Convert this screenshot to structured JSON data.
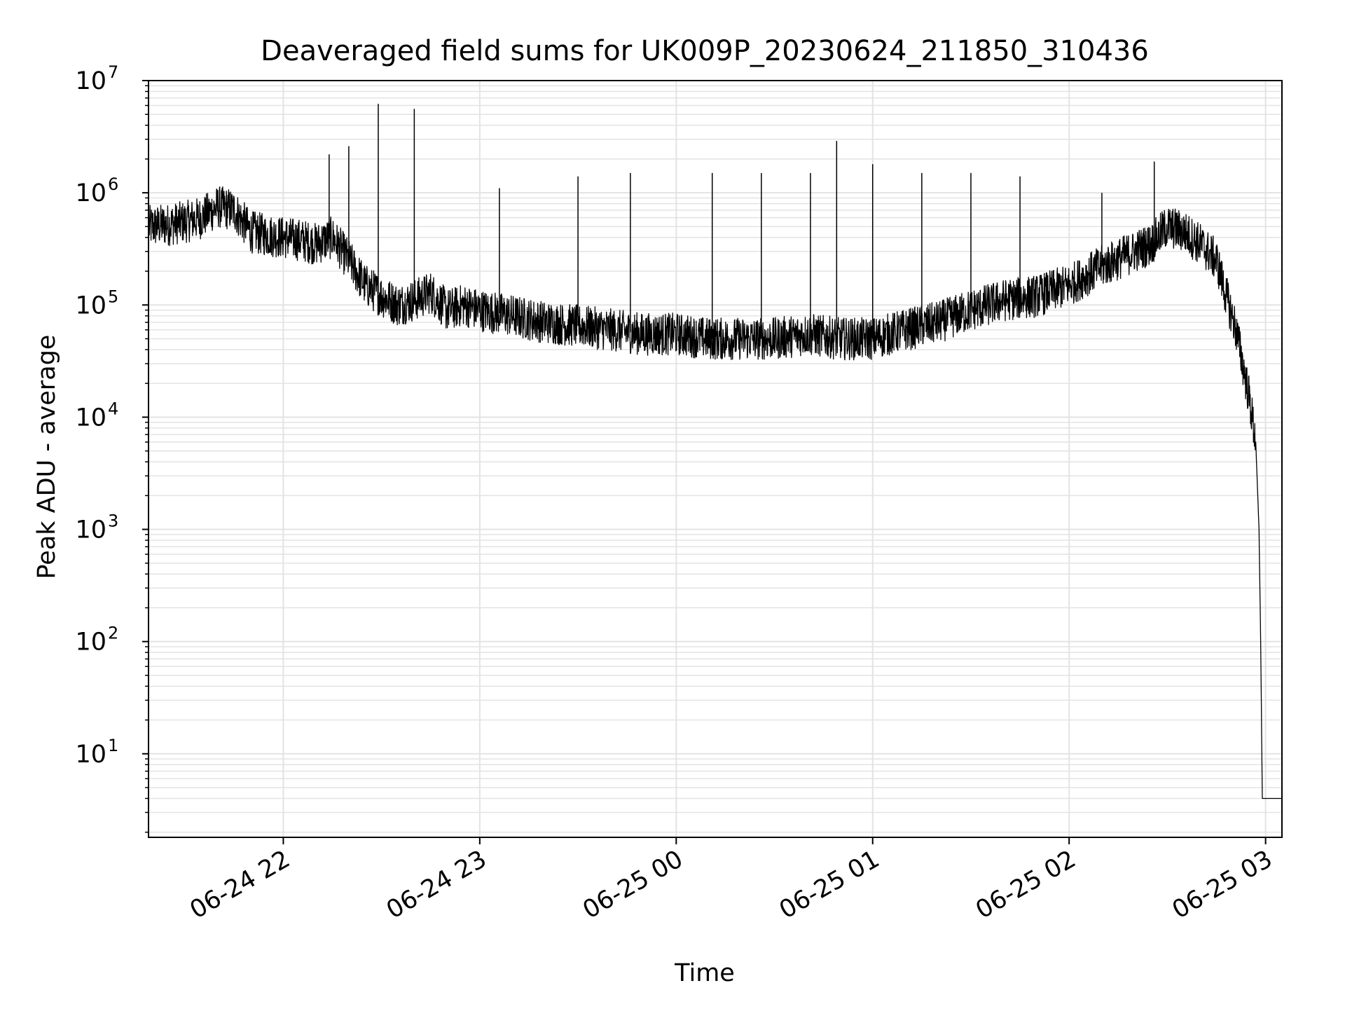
{
  "chart_data": {
    "type": "line",
    "title": "Deaveraged field sums for UK009P_20230624_211850_310436",
    "xlabel": "Time",
    "ylabel": "Peak ADU - average",
    "yscale": "log",
    "ylim": [
      1.8,
      10000000
    ],
    "xlim": [
      "2023-06-24 21:18:50",
      "2023-06-25 03:05:00"
    ],
    "grid": true,
    "x_ticks": [
      {
        "value": "2023-06-24 22:00",
        "label": "06-24 22"
      },
      {
        "value": "2023-06-24 23:00",
        "label": "06-24 23"
      },
      {
        "value": "2023-06-25 00:00",
        "label": "06-25 00"
      },
      {
        "value": "2023-06-25 01:00",
        "label": "06-25 01"
      },
      {
        "value": "2023-06-25 02:00",
        "label": "06-25 02"
      },
      {
        "value": "2023-06-25 03:00",
        "label": "06-25 03"
      }
    ],
    "y_ticks": [
      {
        "value": 10,
        "base": "10",
        "exp": "1"
      },
      {
        "value": 100,
        "base": "10",
        "exp": "2"
      },
      {
        "value": 1000,
        "base": "10",
        "exp": "3"
      },
      {
        "value": 10000,
        "base": "10",
        "exp": "4"
      },
      {
        "value": 100000,
        "base": "10",
        "exp": "5"
      },
      {
        "value": 1000000,
        "base": "10",
        "exp": "6"
      },
      {
        "value": 10000000,
        "base": "10",
        "exp": "7"
      }
    ],
    "series": [
      {
        "color": "#000000",
        "x": [
          "2023-06-24 21:19",
          "2023-06-24 21:25",
          "2023-06-24 21:30",
          "2023-06-24 21:35",
          "2023-06-24 21:40",
          "2023-06-24 21:45",
          "2023-06-24 21:50",
          "2023-06-24 21:55",
          "2023-06-24 22:00",
          "2023-06-24 22:05",
          "2023-06-24 22:10",
          "2023-06-24 22:15",
          "2023-06-24 22:20",
          "2023-06-24 22:25",
          "2023-06-24 22:30",
          "2023-06-24 22:35",
          "2023-06-24 22:40",
          "2023-06-24 22:45",
          "2023-06-24 22:50",
          "2023-06-24 22:55",
          "2023-06-24 23:00",
          "2023-06-24 23:10",
          "2023-06-24 23:20",
          "2023-06-24 23:30",
          "2023-06-24 23:40",
          "2023-06-24 23:50",
          "2023-06-25 00:00",
          "2023-06-25 00:10",
          "2023-06-25 00:20",
          "2023-06-25 00:30",
          "2023-06-25 00:40",
          "2023-06-25 00:50",
          "2023-06-25 01:00",
          "2023-06-25 01:10",
          "2023-06-25 01:20",
          "2023-06-25 01:30",
          "2023-06-25 01:40",
          "2023-06-25 01:50",
          "2023-06-25 02:00",
          "2023-06-25 02:10",
          "2023-06-25 02:20",
          "2023-06-25 02:25",
          "2023-06-25 02:30",
          "2023-06-25 02:35",
          "2023-06-25 02:40",
          "2023-06-25 02:45",
          "2023-06-25 02:48",
          "2023-06-25 02:51",
          "2023-06-25 02:53",
          "2023-06-25 02:55",
          "2023-06-25 02:57",
          "2023-06-25 02:58",
          "2023-06-25 02:58:30",
          "2023-06-25 02:59",
          "2023-06-25 03:05"
        ],
        "y": [
          500000,
          520000,
          550000,
          600000,
          750000,
          700000,
          450000,
          420000,
          400000,
          380000,
          350000,
          400000,
          250000,
          150000,
          120000,
          100000,
          110000,
          130000,
          90000,
          100000,
          90000,
          80000,
          70000,
          65000,
          60000,
          55000,
          55000,
          50000,
          50000,
          50000,
          55000,
          50000,
          50000,
          60000,
          70000,
          90000,
          110000,
          120000,
          150000,
          220000,
          300000,
          350000,
          500000,
          450000,
          350000,
          250000,
          120000,
          60000,
          30000,
          15000,
          6000,
          1000,
          100,
          4,
          4
        ]
      }
    ],
    "spikes": [
      {
        "x": "2023-06-24 22:14",
        "y": 2200000
      },
      {
        "x": "2023-06-24 22:20",
        "y": 2600000
      },
      {
        "x": "2023-06-24 22:29",
        "y": 6200000
      },
      {
        "x": "2023-06-24 22:40",
        "y": 5600000
      },
      {
        "x": "2023-06-24 23:06",
        "y": 1100000
      },
      {
        "x": "2023-06-24 23:30",
        "y": 1400000
      },
      {
        "x": "2023-06-24 23:46",
        "y": 1500000
      },
      {
        "x": "2023-06-25 00:11",
        "y": 1500000
      },
      {
        "x": "2023-06-25 00:26",
        "y": 1500000
      },
      {
        "x": "2023-06-25 00:41",
        "y": 1500000
      },
      {
        "x": "2023-06-25 00:49",
        "y": 2900000
      },
      {
        "x": "2023-06-25 01:00",
        "y": 1800000
      },
      {
        "x": "2023-06-25 01:15",
        "y": 1500000
      },
      {
        "x": "2023-06-25 01:30",
        "y": 1500000
      },
      {
        "x": "2023-06-25 01:45",
        "y": 1400000
      },
      {
        "x": "2023-06-25 02:10",
        "y": 1000000
      },
      {
        "x": "2023-06-25 02:26",
        "y": 1900000
      }
    ]
  }
}
